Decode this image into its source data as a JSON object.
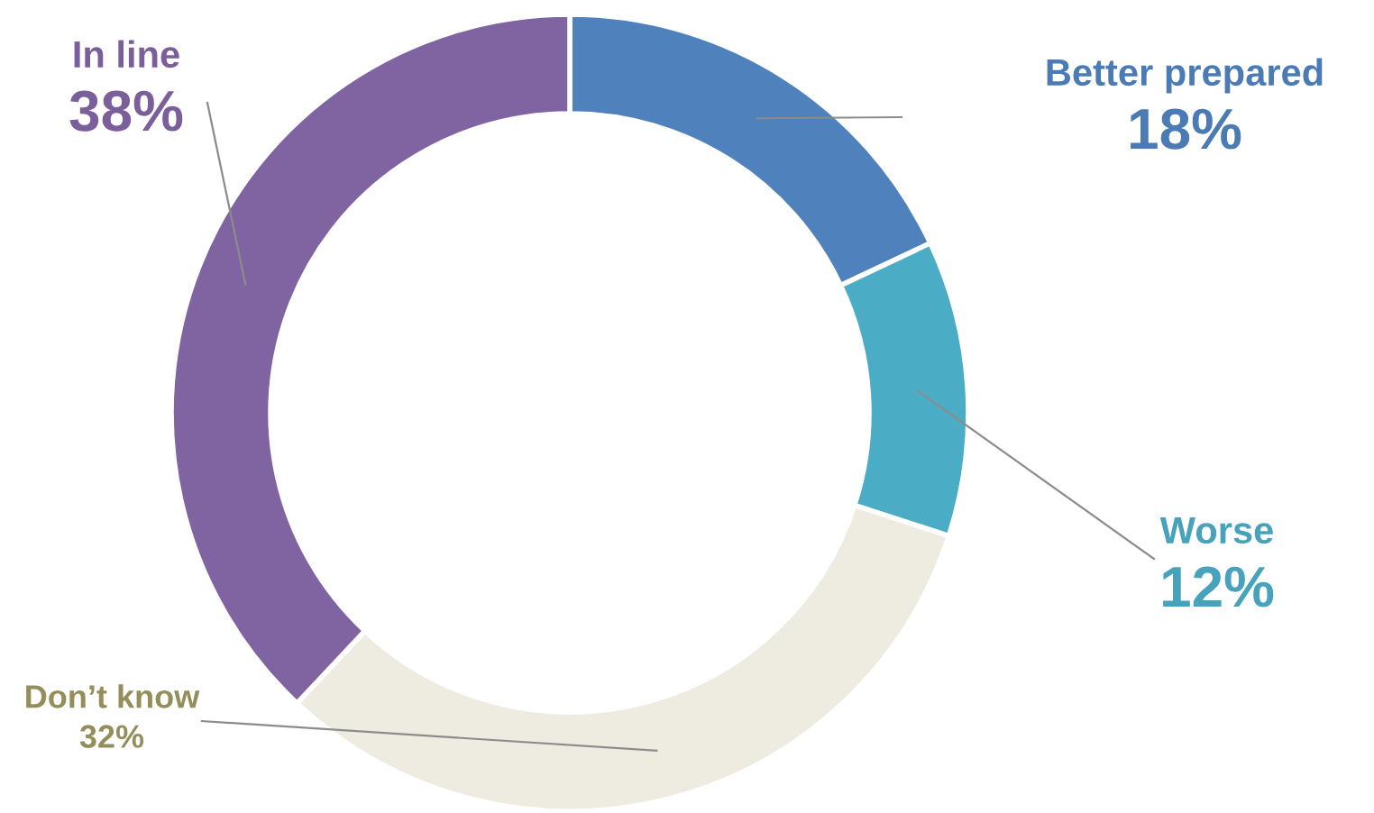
{
  "chart_data": {
    "type": "donut",
    "categories": [
      "Better prepared",
      "Worse",
      "Don’t know",
      "In line"
    ],
    "values": [
      18,
      12,
      32,
      38
    ],
    "value_labels": [
      "18%",
      "12%",
      "32%",
      "38%"
    ],
    "colors": [
      "#4f81bd",
      "#4bacc6",
      "#eeece1",
      "#8064a2"
    ]
  }
}
